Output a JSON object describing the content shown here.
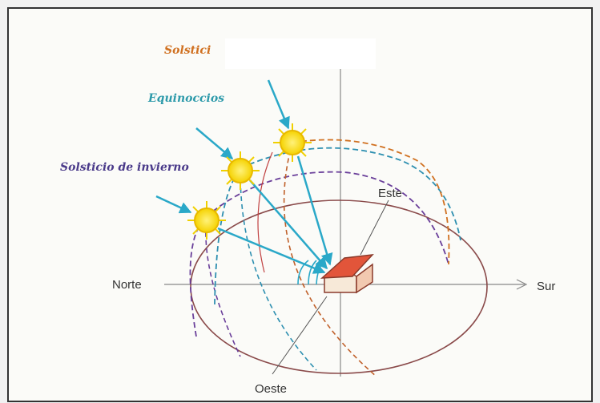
{
  "labels": {
    "summer": "Solstici",
    "equinox": "Equinoccios",
    "winter": "Solsticio de invierno",
    "east": "Este",
    "north": "Norte",
    "south": "Sur",
    "west": "Oeste"
  }
}
